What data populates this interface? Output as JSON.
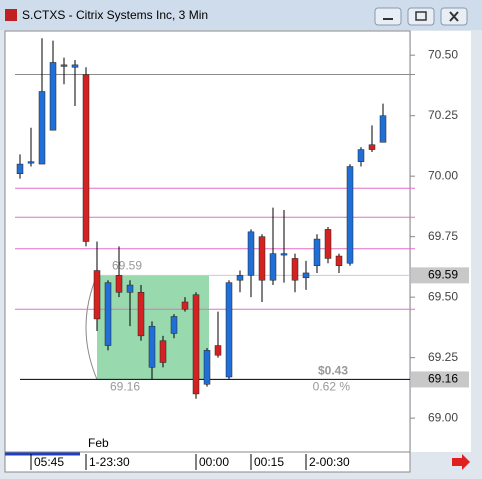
{
  "window_title": "S.CTXS - Citrix Systems Inc, 3 Min",
  "chart_data": {
    "type": "candlestick",
    "title": "S.CTXS - Citrix Systems Inc, 3 Min",
    "month_label": "Feb",
    "categories": [
      null,
      "05:45",
      null,
      null,
      null,
      null,
      "1-23:30",
      null,
      null,
      null,
      null,
      null,
      null,
      null,
      null,
      null,
      "00:00",
      null,
      null,
      null,
      null,
      "00:15",
      null,
      null,
      null,
      null,
      "2-00:30",
      null,
      null,
      null,
      null,
      null,
      null,
      null
    ],
    "open": [
      70.01,
      70.06,
      70.05,
      70.19,
      70.46,
      70.45,
      70.42,
      69.61,
      69.3,
      69.59,
      69.52,
      69.52,
      69.21,
      69.32,
      69.35,
      69.48,
      69.51,
      69.14,
      69.3,
      69.17,
      69.57,
      69.59,
      69.75,
      69.57,
      69.68,
      69.66,
      69.58,
      69.63,
      69.78,
      69.67,
      69.64,
      70.06,
      70.13,
      70.14
    ],
    "high": [
      70.09,
      70.2,
      70.57,
      70.56,
      70.49,
      70.48,
      70.45,
      69.73,
      69.57,
      69.71,
      69.57,
      69.55,
      69.4,
      69.34,
      69.43,
      69.5,
      69.52,
      69.29,
      69.44,
      69.57,
      69.61,
      69.78,
      69.76,
      69.87,
      69.86,
      69.68,
      69.65,
      69.76,
      69.79,
      69.68,
      70.05,
      70.12,
      70.21,
      70.3
    ],
    "low": [
      69.99,
      70.04,
      70.05,
      70.19,
      70.38,
      70.29,
      69.71,
      69.36,
      69.28,
      69.5,
      69.38,
      69.32,
      69.16,
      69.21,
      69.33,
      69.44,
      69.08,
      69.13,
      69.25,
      69.16,
      69.52,
      69.5,
      69.48,
      69.55,
      69.56,
      69.52,
      69.53,
      69.6,
      69.64,
      69.6,
      69.63,
      70.04,
      70.1,
      70.14
    ],
    "close": [
      70.05,
      70.06,
      70.35,
      70.47,
      70.46,
      70.46,
      69.73,
      69.41,
      69.56,
      69.52,
      69.55,
      69.34,
      69.38,
      69.23,
      69.42,
      69.45,
      69.1,
      69.28,
      69.26,
      69.56,
      69.59,
      69.77,
      69.57,
      69.68,
      69.68,
      69.57,
      69.6,
      69.74,
      69.66,
      69.63,
      70.04,
      70.11,
      70.11,
      70.25
    ],
    "up_color": "#1f6fd6",
    "down_color": "#d42222",
    "ylim": [
      68.86,
      70.6
    ],
    "yticks": [
      {
        "value": 69.0,
        "label": "69.00"
      },
      {
        "value": 69.25,
        "label": "69.25"
      },
      {
        "value": 69.5,
        "label": "69.50"
      },
      {
        "value": 69.75,
        "label": "69.75"
      },
      {
        "value": 70.0,
        "label": "70.00"
      },
      {
        "value": 70.25,
        "label": "70.25"
      },
      {
        "value": 70.5,
        "label": "70.50"
      }
    ],
    "reference_lines": [
      {
        "value": 70.42,
        "color": "#8c8c8c"
      },
      {
        "value": 69.95,
        "color": "#e070c8"
      },
      {
        "value": 69.83,
        "color": "#e070c8"
      },
      {
        "value": 69.7,
        "color": "#e070c8"
      },
      {
        "value": 69.45,
        "color": "#e070c8"
      }
    ],
    "range_box": {
      "high": 69.59,
      "low": 69.16,
      "change_label": "$0.43",
      "pct_label": "0.62 %",
      "color": "#7fcf9a"
    }
  }
}
